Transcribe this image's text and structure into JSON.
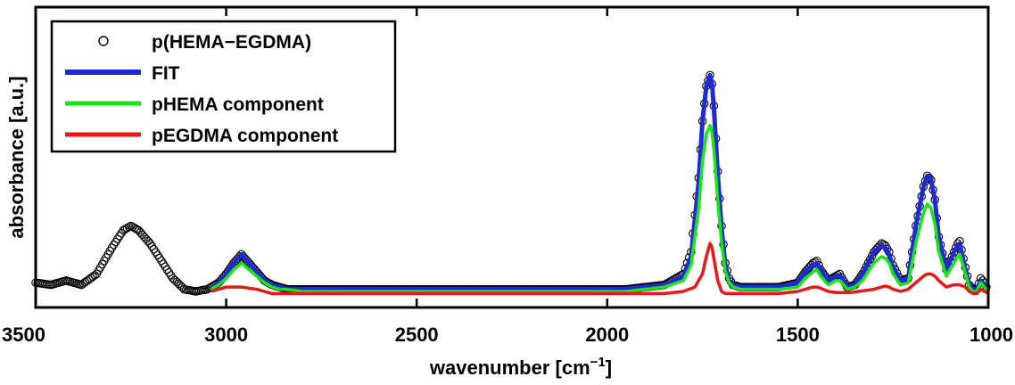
{
  "chart_data": {
    "type": "line",
    "title": "",
    "xlabel": "wavenumber [cm",
    "xlabel_sup": "−1",
    "xlabel_end": "]",
    "ylabel": "absorbance [a.u.]",
    "xlim": [
      3500,
      1000
    ],
    "ylim": [
      0,
      1.05
    ],
    "x_reversed": true,
    "y_ticks_shown": false,
    "grid": false,
    "legend_placement": "top-left",
    "x_ticks": [
      3500,
      3000,
      2500,
      2000,
      1500,
      1000
    ],
    "x_tick_labels": [
      "3500",
      "3000",
      "2500",
      "2000",
      "1500",
      "1000"
    ],
    "series": [
      {
        "name": "p(HEMA−EGDMA)",
        "style": "markers",
        "marker": "open-circle",
        "color": "#000000",
        "x": [
          3500,
          3460,
          3420,
          3380,
          3340,
          3300,
          3270,
          3250,
          3230,
          3200,
          3170,
          3140,
          3110,
          3080,
          3050,
          3020,
          3000,
          2980,
          2960,
          2940,
          2920,
          2900,
          2880,
          2860,
          2840,
          2800,
          2700,
          2500,
          2300,
          2100,
          1950,
          1900,
          1850,
          1800,
          1780,
          1760,
          1750,
          1740,
          1730,
          1725,
          1720,
          1710,
          1700,
          1690,
          1680,
          1670,
          1650,
          1600,
          1550,
          1500,
          1480,
          1460,
          1450,
          1440,
          1420,
          1400,
          1390,
          1380,
          1370,
          1350,
          1330,
          1300,
          1280,
          1270,
          1260,
          1250,
          1230,
          1210,
          1190,
          1170,
          1160,
          1150,
          1140,
          1130,
          1110,
          1090,
          1080,
          1075,
          1070,
          1060,
          1050,
          1040,
          1030,
          1020,
          1010,
          1000
        ],
        "y": [
          0.04,
          0.03,
          0.05,
          0.03,
          0.08,
          0.2,
          0.28,
          0.3,
          0.28,
          0.22,
          0.14,
          0.06,
          0.01,
          0.0,
          0.01,
          0.04,
          0.08,
          0.13,
          0.17,
          0.13,
          0.09,
          0.05,
          0.03,
          0.02,
          0.01,
          0.01,
          0.01,
          0.01,
          0.01,
          0.01,
          0.01,
          0.02,
          0.03,
          0.08,
          0.18,
          0.52,
          0.78,
          0.94,
          0.99,
          0.95,
          0.85,
          0.55,
          0.3,
          0.13,
          0.06,
          0.03,
          0.02,
          0.02,
          0.02,
          0.04,
          0.09,
          0.13,
          0.14,
          0.1,
          0.05,
          0.07,
          0.08,
          0.05,
          0.02,
          0.03,
          0.08,
          0.18,
          0.22,
          0.21,
          0.18,
          0.12,
          0.05,
          0.06,
          0.3,
          0.48,
          0.53,
          0.51,
          0.42,
          0.25,
          0.1,
          0.18,
          0.22,
          0.23,
          0.19,
          0.11,
          0.03,
          0.01,
          0.01,
          0.06,
          0.04,
          0.0
        ]
      },
      {
        "name": "FIT",
        "style": "line",
        "color": "#1f2ad6",
        "x": [
          3040,
          3020,
          3000,
          2980,
          2960,
          2940,
          2920,
          2900,
          2880,
          2860,
          2840,
          2800,
          2700,
          2500,
          2300,
          2100,
          1950,
          1900,
          1850,
          1800,
          1780,
          1760,
          1750,
          1740,
          1730,
          1725,
          1720,
          1710,
          1700,
          1690,
          1680,
          1670,
          1650,
          1600,
          1550,
          1500,
          1480,
          1460,
          1450,
          1440,
          1420,
          1400,
          1390,
          1380,
          1370,
          1350,
          1330,
          1300,
          1280,
          1270,
          1260,
          1250,
          1230,
          1210,
          1190,
          1170,
          1160,
          1150,
          1140,
          1130,
          1110,
          1090,
          1080,
          1075,
          1070,
          1060,
          1050,
          1040,
          1030,
          1020,
          1010,
          1000
        ],
        "y": [
          0.01,
          0.04,
          0.08,
          0.13,
          0.17,
          0.13,
          0.09,
          0.05,
          0.03,
          0.02,
          0.01,
          0.01,
          0.01,
          0.01,
          0.01,
          0.01,
          0.01,
          0.02,
          0.03,
          0.07,
          0.16,
          0.5,
          0.78,
          0.94,
          0.99,
          0.95,
          0.84,
          0.54,
          0.29,
          0.12,
          0.05,
          0.03,
          0.02,
          0.02,
          0.02,
          0.04,
          0.09,
          0.12,
          0.13,
          0.1,
          0.05,
          0.07,
          0.07,
          0.05,
          0.02,
          0.03,
          0.08,
          0.18,
          0.21,
          0.2,
          0.17,
          0.11,
          0.05,
          0.06,
          0.3,
          0.48,
          0.53,
          0.51,
          0.42,
          0.25,
          0.1,
          0.18,
          0.21,
          0.22,
          0.18,
          0.1,
          0.03,
          0.01,
          0.01,
          0.05,
          0.03,
          0.0
        ]
      },
      {
        "name": "pHEMA component",
        "style": "line",
        "color": "#19e619",
        "x": [
          3040,
          3020,
          3000,
          2980,
          2960,
          2940,
          2920,
          2900,
          2880,
          2860,
          2840,
          2800,
          2700,
          2500,
          2300,
          2100,
          1950,
          1900,
          1850,
          1800,
          1780,
          1760,
          1750,
          1740,
          1730,
          1725,
          1720,
          1710,
          1700,
          1690,
          1680,
          1670,
          1650,
          1600,
          1550,
          1500,
          1480,
          1460,
          1450,
          1440,
          1420,
          1400,
          1390,
          1380,
          1370,
          1350,
          1330,
          1300,
          1280,
          1270,
          1260,
          1250,
          1230,
          1210,
          1190,
          1170,
          1160,
          1150,
          1140,
          1130,
          1110,
          1090,
          1080,
          1075,
          1070,
          1060,
          1050,
          1040,
          1030,
          1020,
          1010,
          1000
        ],
        "y": [
          0.01,
          0.03,
          0.06,
          0.1,
          0.13,
          0.1,
          0.07,
          0.04,
          0.02,
          0.01,
          0.01,
          0.0,
          0.0,
          0.0,
          0.0,
          0.0,
          0.0,
          0.01,
          0.02,
          0.05,
          0.12,
          0.38,
          0.6,
          0.72,
          0.76,
          0.73,
          0.65,
          0.42,
          0.22,
          0.09,
          0.04,
          0.02,
          0.01,
          0.01,
          0.01,
          0.02,
          0.06,
          0.09,
          0.1,
          0.07,
          0.03,
          0.05,
          0.05,
          0.03,
          0.01,
          0.02,
          0.05,
          0.13,
          0.16,
          0.15,
          0.13,
          0.08,
          0.03,
          0.04,
          0.22,
          0.36,
          0.4,
          0.38,
          0.31,
          0.18,
          0.07,
          0.13,
          0.16,
          0.17,
          0.14,
          0.08,
          0.02,
          0.0,
          0.0,
          0.04,
          0.02,
          0.0
        ]
      },
      {
        "name": "pEGDMA component",
        "style": "line",
        "color": "#e61919",
        "x": [
          3040,
          3020,
          3000,
          2980,
          2960,
          2940,
          2920,
          2900,
          2880,
          2860,
          2800,
          2700,
          2500,
          2300,
          2100,
          1950,
          1850,
          1800,
          1770,
          1750,
          1740,
          1730,
          1725,
          1720,
          1710,
          1700,
          1690,
          1680,
          1650,
          1600,
          1550,
          1500,
          1480,
          1460,
          1450,
          1440,
          1420,
          1400,
          1380,
          1360,
          1340,
          1300,
          1280,
          1270,
          1260,
          1250,
          1230,
          1210,
          1190,
          1170,
          1160,
          1150,
          1140,
          1130,
          1110,
          1090,
          1075,
          1060,
          1050,
          1040,
          1030,
          1020,
          1010,
          1000
        ],
        "y": [
          0.0,
          0.01,
          0.02,
          0.02,
          0.02,
          0.015,
          0.01,
          0.0,
          -0.01,
          -0.01,
          -0.01,
          -0.01,
          -0.01,
          -0.01,
          -0.01,
          -0.01,
          -0.01,
          0.0,
          0.02,
          0.08,
          0.16,
          0.22,
          0.2,
          0.15,
          0.05,
          0.0,
          -0.01,
          -0.01,
          -0.01,
          -0.01,
          -0.01,
          0.0,
          0.01,
          0.02,
          0.02,
          0.015,
          0.0,
          -0.005,
          -0.005,
          -0.005,
          0.0,
          0.01,
          0.02,
          0.025,
          0.02,
          0.01,
          0.0,
          0.01,
          0.04,
          0.07,
          0.08,
          0.08,
          0.07,
          0.05,
          0.02,
          0.03,
          0.03,
          0.02,
          0.0,
          -0.01,
          -0.01,
          0.01,
          0.0,
          -0.01
        ]
      }
    ]
  }
}
